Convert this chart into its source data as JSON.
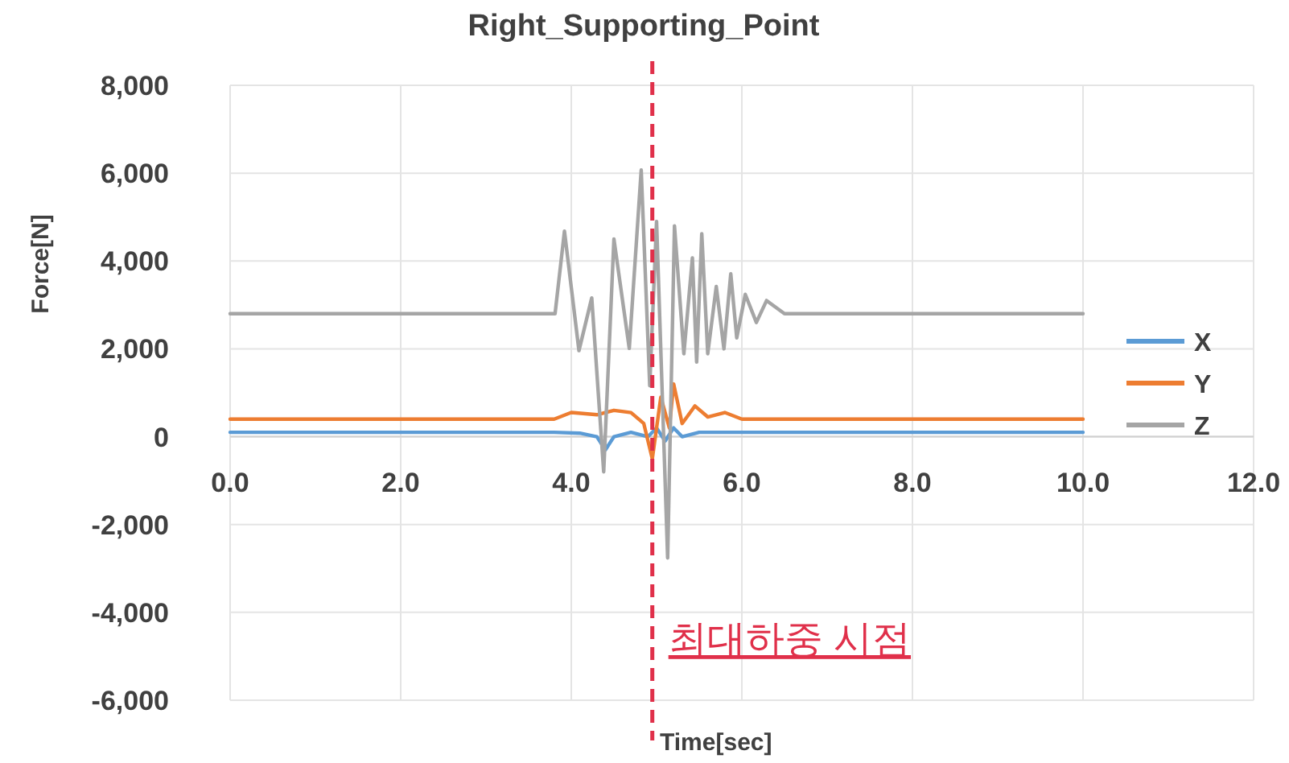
{
  "chart_data": {
    "type": "line",
    "title": "Right_Supporting_Point",
    "xlabel": "Time[sec]",
    "ylabel": "Force[N]",
    "xlim": [
      0,
      12
    ],
    "ylim": [
      -6000,
      8000
    ],
    "xticks": [
      {
        "value": 0,
        "label": "0.0"
      },
      {
        "value": 2,
        "label": "2.0"
      },
      {
        "value": 4,
        "label": "4.0"
      },
      {
        "value": 6,
        "label": "6.0"
      },
      {
        "value": 8,
        "label": "8.0"
      },
      {
        "value": 10,
        "label": "10.0"
      },
      {
        "value": 12,
        "label": "12.0"
      }
    ],
    "yticks": [
      {
        "value": -6000,
        "label": "-6,000"
      },
      {
        "value": -4000,
        "label": "-4,000"
      },
      {
        "value": -2000,
        "label": "-2,000"
      },
      0,
      {
        "value": 2000,
        "label": "2,000"
      },
      {
        "value": 4000,
        "label": "4,000"
      },
      {
        "value": 6000,
        "label": "6,000"
      },
      {
        "value": 8000,
        "label": "8,000"
      }
    ],
    "grid": true,
    "legend": "right",
    "marker": "none",
    "line_style": "solid",
    "ref_lines": [
      {
        "axis": "x",
        "value": 4.95,
        "label": "최대하중 시점",
        "color": "#e0304a",
        "line_style": "dashed"
      }
    ],
    "series": [
      {
        "name": "X",
        "color": "#5b9bd5",
        "x": [
          0,
          3.8,
          4.1,
          4.3,
          4.4,
          4.5,
          4.7,
          4.9,
          5.0,
          5.1,
          5.2,
          5.3,
          5.5,
          5.8,
          10
        ],
        "values": [
          100,
          100,
          80,
          0,
          -300,
          0,
          100,
          0,
          200,
          -100,
          200,
          0,
          100,
          100,
          100
        ]
      },
      {
        "name": "Y",
        "color": "#ed7d31",
        "x": [
          0,
          3.8,
          4.0,
          4.3,
          4.5,
          4.7,
          4.85,
          4.95,
          5.05,
          5.15,
          5.2,
          5.3,
          5.45,
          5.6,
          5.8,
          6.0,
          10
        ],
        "values": [
          400,
          400,
          550,
          500,
          600,
          550,
          300,
          -500,
          900,
          200,
          1200,
          300,
          700,
          450,
          550,
          400,
          400
        ]
      },
      {
        "name": "Z",
        "color": "#a5a5a5",
        "x": [
          0,
          3.81,
          3.92,
          4.09,
          4.24,
          4.38,
          4.5,
          4.68,
          4.82,
          4.92,
          5.0,
          5.13,
          5.21,
          5.32,
          5.42,
          5.47,
          5.53,
          5.6,
          5.7,
          5.79,
          5.87,
          5.94,
          6.04,
          6.17,
          6.29,
          6.5,
          10
        ],
        "values": [
          2800,
          2800,
          4680,
          1960,
          3160,
          -800,
          4500,
          2010,
          6070,
          1160,
          4900,
          -2760,
          4800,
          1890,
          4070,
          1700,
          4620,
          1890,
          3420,
          2000,
          3710,
          2250,
          3240,
          2600,
          3100,
          2800,
          2800
        ]
      }
    ]
  }
}
